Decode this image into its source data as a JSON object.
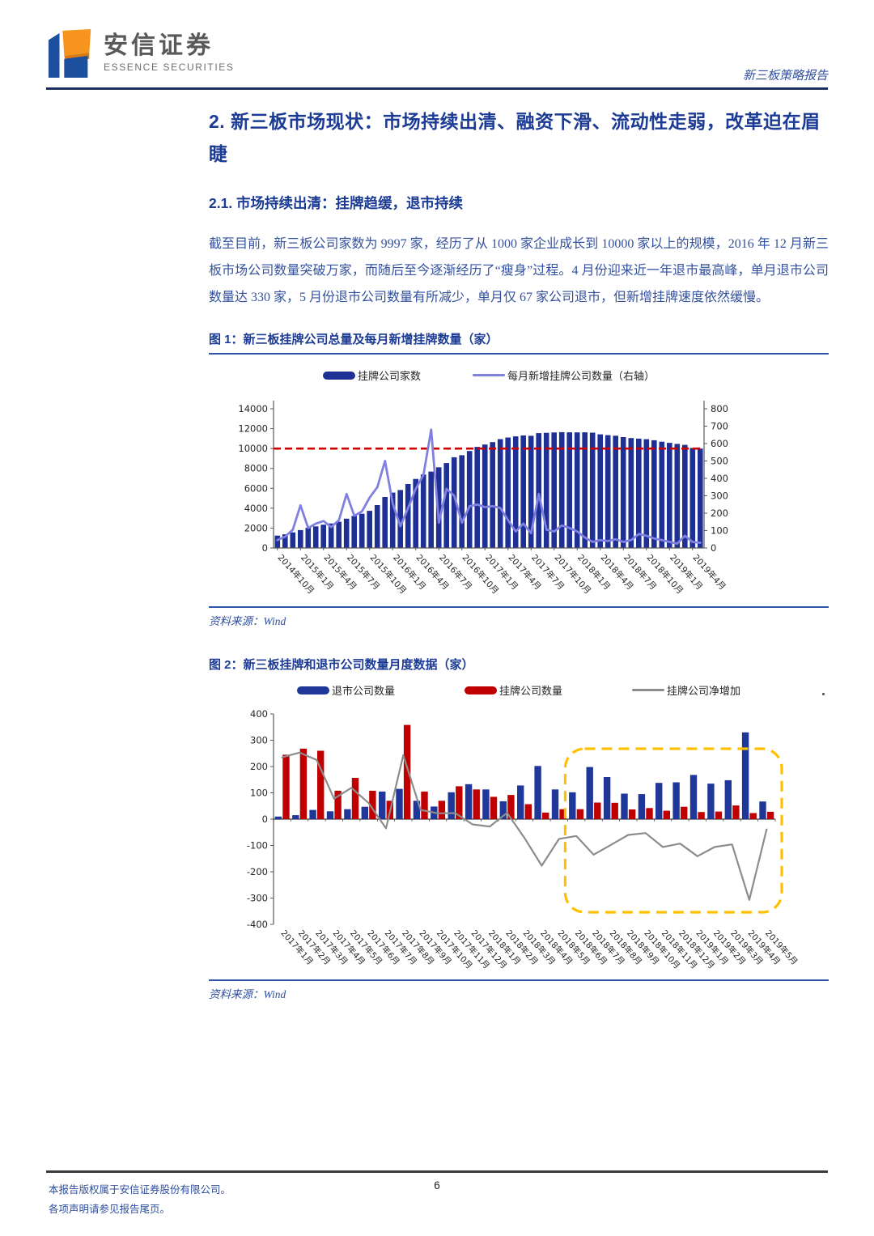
{
  "header": {
    "brand_cn": "安信证券",
    "brand_en": "ESSENCE SECURITIES",
    "report_label": "新三板策略报告"
  },
  "section": {
    "heading": "2. 新三板市场现状：市场持续出清、融资下滑、流动性走弱，改革迫在眉睫",
    "subheading": "2.1. 市场持续出清：挂牌趋缓，退市持续",
    "paragraph": "截至目前，新三板公司家数为 9997 家，经历了从 1000 家企业成长到 10000 家以上的规模，2016 年 12 月新三板市场公司数量突破万家，而随后至今逐渐经历了“瘦身”过程。4 月份迎来近一年退市最高峰，单月退市公司数量达 330 家，5 月份退市公司数量有所减少，单月仅 67 家公司退市，但新增挂牌速度依然缓慢。"
  },
  "figures": [
    {
      "caption": "图 1：新三板挂牌公司总量及每月新增挂牌数量（家）",
      "source": "资料来源：Wind"
    },
    {
      "caption": "图 2：新三板挂牌和退市公司数量月度数据（家）",
      "source": "资料来源：Wind"
    }
  ],
  "footer": {
    "copyright_line1": "本报告版权属于安信证券股份有限公司。",
    "copyright_line2": "各项声明请参见报告尾页。",
    "page_number": "6"
  },
  "colors": {
    "heading_navy": "#1C3B94",
    "body_blue": "#33519E",
    "bar_navy": "#1E3093",
    "line_purple": "#8080E0",
    "bar_red": "#C00000",
    "line_gray": "#8C8C8C",
    "highlight_yellow": "#FFC000",
    "reference_red": "#CC0000"
  },
  "chart_data": [
    {
      "id": "chart1",
      "type": "bar",
      "title": "新三板挂牌公司总量及每月新增挂牌数量（家）",
      "categories": [
        "2014年10月",
        "2014年11月",
        "2014年12月",
        "2015年1月",
        "2015年2月",
        "2015年3月",
        "2015年4月",
        "2015年5月",
        "2015年6月",
        "2015年7月",
        "2015年8月",
        "2015年9月",
        "2015年10月",
        "2015年11月",
        "2015年12月",
        "2016年1月",
        "2016年2月",
        "2016年3月",
        "2016年4月",
        "2016年5月",
        "2016年6月",
        "2016年7月",
        "2016年8月",
        "2016年9月",
        "2016年10月",
        "2016年11月",
        "2016年12月",
        "2017年1月",
        "2017年2月",
        "2017年3月",
        "2017年4月",
        "2017年5月",
        "2017年6月",
        "2017年7月",
        "2017年8月",
        "2017年9月",
        "2017年10月",
        "2017年11月",
        "2017年12月",
        "2018年1月",
        "2018年2月",
        "2018年3月",
        "2018年4月",
        "2018年5月",
        "2018年6月",
        "2018年7月",
        "2018年8月",
        "2018年9月",
        "2018年10月",
        "2018年11月",
        "2018年12月",
        "2019年1月",
        "2019年2月",
        "2019年3月",
        "2019年4月",
        "2019年5月"
      ],
      "series": [
        {
          "name": "挂牌公司家数",
          "type": "bar",
          "axis": "left",
          "color": "#1E3093",
          "values": [
            1245,
            1378,
            1572,
            1800,
            2026,
            2176,
            2343,
            2465,
            2637,
            2946,
            3226,
            3445,
            3734,
            4313,
            5129,
            5570,
            5826,
            6430,
            6945,
            7394,
            7685,
            8117,
            8538,
            9122,
            9327,
            9752,
            10163,
            10400,
            10650,
            10947,
            11113,
            11222,
            11314,
            11284,
            11551,
            11584,
            11614,
            11645,
            11630,
            11627,
            11630,
            11602,
            11426,
            11350,
            11287,
            11153,
            11055,
            10995,
            10942,
            10836,
            10691,
            10576,
            10468,
            10372,
            10064,
            9997
          ]
        },
        {
          "name": "每月新增挂牌公司数量（右轴）",
          "type": "line",
          "axis": "right",
          "color": "#8080E0",
          "values": [
            45,
            65,
            105,
            245,
            115,
            140,
            155,
            120,
            160,
            310,
            185,
            210,
            290,
            350,
            500,
            255,
            125,
            230,
            340,
            420,
            680,
            145,
            340,
            300,
            145,
            240,
            250,
            235,
            240,
            230,
            160,
            95,
            140,
            85,
            310,
            105,
            95,
            130,
            115,
            95,
            60,
            35,
            45,
            40,
            50,
            35,
            45,
            80,
            70,
            55,
            45,
            35,
            25,
            70,
            35,
            30
          ]
        }
      ],
      "left_axis": {
        "min": 0,
        "max": 14000,
        "step": 2000
      },
      "right_axis": {
        "min": 0,
        "max": 800,
        "step": 100
      },
      "reference_line": {
        "value": 10000,
        "axis": "left",
        "color": "#CC0000",
        "style": "dashed"
      },
      "x_tick_labels": [
        "2014年10月",
        "2015年1月",
        "2015年4月",
        "2015年7月",
        "2015年10月",
        "2016年1月",
        "2016年4月",
        "2016年7月",
        "2016年10月",
        "2017年1月",
        "2017年4月",
        "2017年7月",
        "2017年10月",
        "2018年1月",
        "2018年4月",
        "2018年7月",
        "2018年10月",
        "2019年1月",
        "2019年4月"
      ],
      "x_tick_every": 3,
      "grid": false,
      "legend_position": "top"
    },
    {
      "id": "chart2",
      "type": "bar",
      "title": "新三板挂牌和退市公司数量月度数据（家）",
      "categories": [
        "2017年1月",
        "2017年2月",
        "2017年3月",
        "2017年4月",
        "2017年5月",
        "2017年6月",
        "2017年7月",
        "2017年8月",
        "2017年9月",
        "2017年10月",
        "2017年11月",
        "2017年12月",
        "2018年1月",
        "2018年2月",
        "2018年3月",
        "2018年4月",
        "2018年5月",
        "2018年6月",
        "2018年7月",
        "2018年8月",
        "2018年9月",
        "2018年10月",
        "2018年11月",
        "2018年12月",
        "2019年1月",
        "2019年2月",
        "2019年3月",
        "2019年4月",
        "2019年5月"
      ],
      "series": [
        {
          "name": "退市公司数量",
          "type": "bar",
          "color": "#1E3799",
          "values": [
            10,
            15,
            35,
            30,
            38,
            47,
            105,
            115,
            70,
            48,
            102,
            133,
            113,
            68,
            128,
            202,
            113,
            102,
            198,
            160,
            97,
            95,
            138,
            140,
            168,
            135,
            148,
            330,
            67
          ]
        },
        {
          "name": "挂牌公司数量",
          "type": "bar",
          "color": "#C00000",
          "values": [
            245,
            268,
            260,
            108,
            157,
            108,
            70,
            358,
            105,
            70,
            125,
            113,
            85,
            92,
            57,
            25,
            38,
            38,
            63,
            62,
            37,
            42,
            32,
            47,
            27,
            29,
            52,
            23,
            28
          ]
        },
        {
          "name": "挂牌公司净增加",
          "type": "line",
          "color": "#8C8C8C",
          "values": [
            235,
            253,
            225,
            78,
            119,
            61,
            -35,
            243,
            35,
            22,
            23,
            -20,
            -28,
            24,
            -71,
            -177,
            -75,
            -64,
            -135,
            -98,
            -60,
            -53,
            -106,
            -93,
            -141,
            -106,
            -96,
            -307,
            -39
          ]
        }
      ],
      "y_axis": {
        "min": -400,
        "max": 400,
        "step": 100
      },
      "highlight_box": {
        "from": "2018年6月",
        "to": "2019年5月",
        "color": "#FFC000",
        "style": "dashed-rounded"
      },
      "grid": false,
      "legend_position": "top"
    }
  ]
}
